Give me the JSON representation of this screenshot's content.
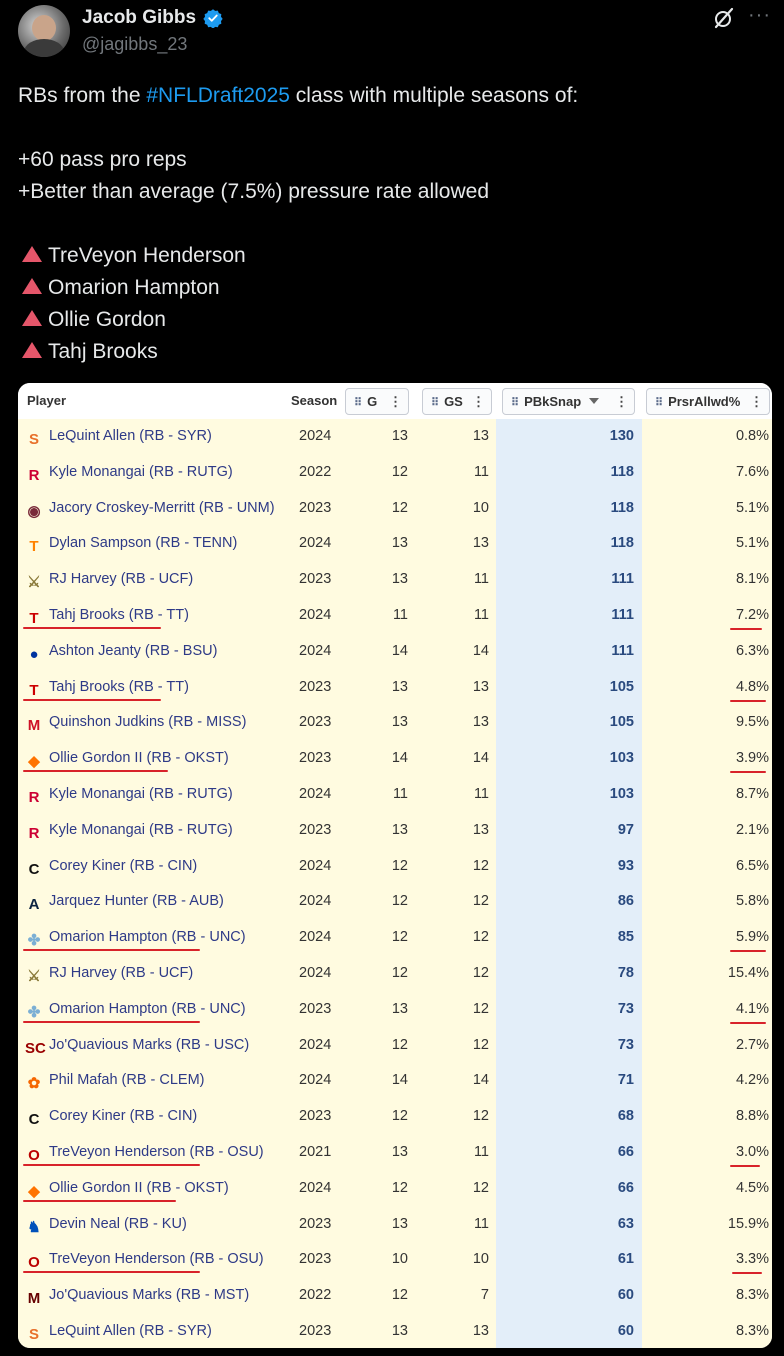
{
  "author": {
    "name": "Jacob Gibbs",
    "handle": "@jagibbs_23",
    "avatar_icon": "avatar-photo",
    "verified_icon": "verified-badge-icon"
  },
  "header_icons": {
    "grok": "grok-icon",
    "more": "···"
  },
  "tweet": {
    "line1_pre": "RBs from the ",
    "hashtag": "#NFLDraft2025",
    "line1_post": " class with multiple seasons of:",
    "criteria": [
      "+60 pass pro reps",
      "+Better than average (7.5%) pressure rate allowed"
    ],
    "players": [
      "TreVeyon Henderson",
      "Omarion Hampton",
      "Ollie Gordon",
      "Tahj Brooks"
    ]
  },
  "table": {
    "headers": {
      "player": "Player",
      "season": "Season",
      "g": "G",
      "gs": "GS",
      "pbksnap": "PBkSnap",
      "prsr": "PrsrAllwd%"
    },
    "rows": [
      {
        "player": "LeQuint Allen (RB - SYR)",
        "season": "2024",
        "g": "13",
        "gs": "13",
        "pbksnap": "130",
        "prsr": "0.8%",
        "logo": "S",
        "logo_color": "#e8702a"
      },
      {
        "player": "Kyle Monangai (RB - RUTG)",
        "season": "2022",
        "g": "12",
        "gs": "11",
        "pbksnap": "118",
        "prsr": "7.6%",
        "logo": "R",
        "logo_color": "#cc0033"
      },
      {
        "player": "Jacory Croskey-Merritt (RB - UNM)",
        "season": "2023",
        "g": "12",
        "gs": "10",
        "pbksnap": "118",
        "prsr": "5.1%",
        "logo": "◉",
        "logo_color": "#7a2a3a"
      },
      {
        "player": "Dylan Sampson (RB - TENN)",
        "season": "2024",
        "g": "13",
        "gs": "13",
        "pbksnap": "118",
        "prsr": "5.1%",
        "logo": "T",
        "logo_color": "#ff8200"
      },
      {
        "player": "RJ Harvey (RB - UCF)",
        "season": "2023",
        "g": "13",
        "gs": "11",
        "pbksnap": "111",
        "prsr": "8.1%",
        "logo": "⚔",
        "logo_color": "#8a7a3a"
      },
      {
        "player": "Tahj Brooks (RB - TT)",
        "season": "2024",
        "g": "11",
        "gs": "11",
        "pbksnap": "111",
        "prsr": "7.2%",
        "logo": "T",
        "logo_color": "#cc0000"
      },
      {
        "player": "Ashton Jeanty (RB - BSU)",
        "season": "2024",
        "g": "14",
        "gs": "14",
        "pbksnap": "111",
        "prsr": "6.3%",
        "logo": "●",
        "logo_color": "#0033a0"
      },
      {
        "player": "Tahj Brooks (RB - TT)",
        "season": "2023",
        "g": "13",
        "gs": "13",
        "pbksnap": "105",
        "prsr": "4.8%",
        "logo": "T",
        "logo_color": "#cc0000"
      },
      {
        "player": "Quinshon Judkins (RB - MISS)",
        "season": "2023",
        "g": "13",
        "gs": "13",
        "pbksnap": "105",
        "prsr": "9.5%",
        "logo": "M",
        "logo_color": "#ce1126"
      },
      {
        "player": "Ollie Gordon II (RB - OKST)",
        "season": "2023",
        "g": "14",
        "gs": "14",
        "pbksnap": "103",
        "prsr": "3.9%",
        "logo": "◆",
        "logo_color": "#ff7300"
      },
      {
        "player": "Kyle Monangai (RB - RUTG)",
        "season": "2024",
        "g": "11",
        "gs": "11",
        "pbksnap": "103",
        "prsr": "8.7%",
        "logo": "R",
        "logo_color": "#cc0033"
      },
      {
        "player": "Kyle Monangai (RB - RUTG)",
        "season": "2023",
        "g": "13",
        "gs": "13",
        "pbksnap": "97",
        "prsr": "2.1%",
        "logo": "R",
        "logo_color": "#cc0033"
      },
      {
        "player": "Corey Kiner (RB - CIN)",
        "season": "2024",
        "g": "12",
        "gs": "12",
        "pbksnap": "93",
        "prsr": "6.5%",
        "logo": "C",
        "logo_color": "#111111"
      },
      {
        "player": "Jarquez Hunter (RB - AUB)",
        "season": "2024",
        "g": "12",
        "gs": "12",
        "pbksnap": "86",
        "prsr": "5.8%",
        "logo": "A",
        "logo_color": "#0c2340"
      },
      {
        "player": "Omarion Hampton (RB - UNC)",
        "season": "2024",
        "g": "12",
        "gs": "12",
        "pbksnap": "85",
        "prsr": "5.9%",
        "logo": "✤",
        "logo_color": "#7bafd4"
      },
      {
        "player": "RJ Harvey (RB - UCF)",
        "season": "2024",
        "g": "12",
        "gs": "12",
        "pbksnap": "78",
        "prsr": "15.4%",
        "logo": "⚔",
        "logo_color": "#8a7a3a"
      },
      {
        "player": "Omarion Hampton (RB - UNC)",
        "season": "2023",
        "g": "13",
        "gs": "12",
        "pbksnap": "73",
        "prsr": "4.1%",
        "logo": "✤",
        "logo_color": "#7bafd4"
      },
      {
        "player": "Jo'Quavious Marks (RB - USC)",
        "season": "2024",
        "g": "12",
        "gs": "12",
        "pbksnap": "73",
        "prsr": "2.7%",
        "logo": "SC",
        "logo_color": "#990000"
      },
      {
        "player": "Phil Mafah (RB - CLEM)",
        "season": "2024",
        "g": "14",
        "gs": "14",
        "pbksnap": "71",
        "prsr": "4.2%",
        "logo": "✿",
        "logo_color": "#f56600"
      },
      {
        "player": "Corey Kiner (RB - CIN)",
        "season": "2023",
        "g": "12",
        "gs": "12",
        "pbksnap": "68",
        "prsr": "8.8%",
        "logo": "C",
        "logo_color": "#111111"
      },
      {
        "player": "TreVeyon Henderson (RB - OSU)",
        "season": "2021",
        "g": "13",
        "gs": "11",
        "pbksnap": "66",
        "prsr": "3.0%",
        "logo": "O",
        "logo_color": "#bb0000"
      },
      {
        "player": "Ollie Gordon II (RB - OKST)",
        "season": "2024",
        "g": "12",
        "gs": "12",
        "pbksnap": "66",
        "prsr": "4.5%",
        "logo": "◆",
        "logo_color": "#ff7300"
      },
      {
        "player": "Devin Neal (RB - KU)",
        "season": "2023",
        "g": "13",
        "gs": "11",
        "pbksnap": "63",
        "prsr": "15.9%",
        "logo": "♞",
        "logo_color": "#0051ba"
      },
      {
        "player": "TreVeyon Henderson (RB - OSU)",
        "season": "2023",
        "g": "10",
        "gs": "10",
        "pbksnap": "61",
        "prsr": "3.3%",
        "logo": "O",
        "logo_color": "#bb0000"
      },
      {
        "player": "Jo'Quavious Marks (RB - MST)",
        "season": "2022",
        "g": "12",
        "gs": "7",
        "pbksnap": "60",
        "prsr": "8.3%",
        "logo": "M",
        "logo_color": "#660000"
      },
      {
        "player": "LeQuint Allen (RB - SYR)",
        "season": "2023",
        "g": "13",
        "gs": "13",
        "pbksnap": "60",
        "prsr": "8.3%",
        "logo": "S",
        "logo_color": "#e8702a"
      }
    ]
  },
  "colors": {
    "hashtag": "#1d9bf0",
    "triangle": "#e5566a",
    "underline": "#d8232a",
    "row_bg": "#fffbe0",
    "pbk_bg": "#e3eef9"
  }
}
